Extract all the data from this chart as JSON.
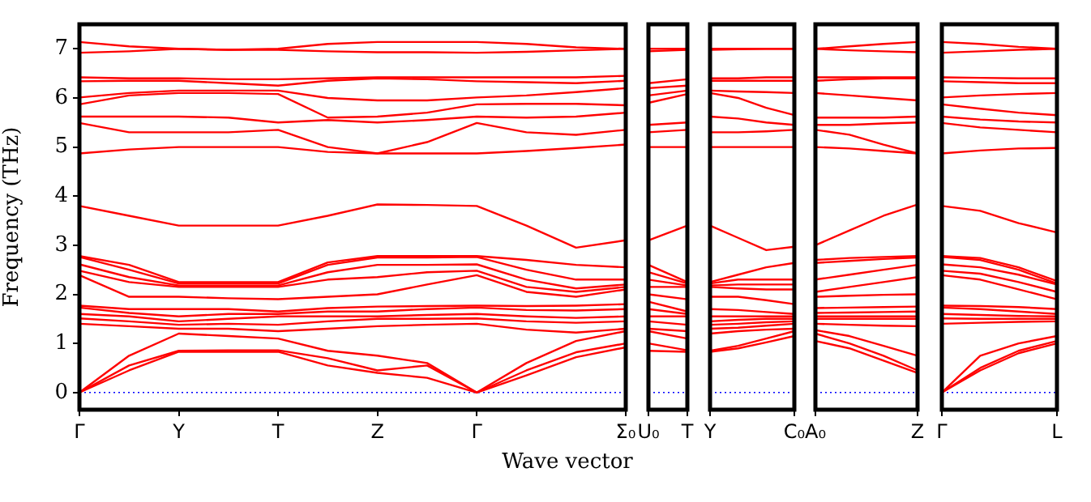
{
  "chart_data": [
    {
      "type": "line",
      "ylabel": "Frequency (THz)",
      "xlabel": "Wave vector",
      "categories": [
        "Γ",
        null,
        "Y",
        null,
        "T",
        null,
        "Z",
        null,
        "Γ",
        null,
        null,
        "Σ₀"
      ],
      "ylim": [
        -0.35,
        7.5
      ],
      "yticks": [
        0,
        1,
        2,
        3,
        4,
        5,
        6,
        7
      ],
      "ref_lines": [
        {
          "axis": "y",
          "value": 0,
          "color": "#0000ff",
          "line_style": "dotted"
        }
      ],
      "series": [
        {
          "color": "#ff0000",
          "values": [
            0,
            0.45,
            0.83,
            0.83,
            0.83,
            0.55,
            0.4,
            0.3,
            0,
            0.35,
            0.72,
            0.92
          ]
        },
        {
          "color": "#ff0000",
          "values": [
            0,
            0.55,
            0.85,
            0.86,
            0.86,
            0.7,
            0.45,
            0.55,
            0,
            0.45,
            0.82,
            1.0
          ]
        },
        {
          "color": "#ff0000",
          "values": [
            0,
            0.75,
            1.2,
            1.15,
            1.1,
            0.85,
            0.75,
            0.6,
            0,
            0.6,
            1.05,
            1.25
          ]
        },
        {
          "color": "#ff0000",
          "values": [
            1.4,
            1.35,
            1.3,
            1.3,
            1.25,
            1.3,
            1.35,
            1.38,
            1.4,
            1.28,
            1.22,
            1.3
          ]
        },
        {
          "color": "#ff0000",
          "values": [
            1.51,
            1.45,
            1.38,
            1.4,
            1.38,
            1.45,
            1.5,
            1.5,
            1.51,
            1.45,
            1.42,
            1.45
          ]
        },
        {
          "color": "#ff0000",
          "values": [
            1.6,
            1.55,
            1.45,
            1.5,
            1.55,
            1.55,
            1.55,
            1.58,
            1.6,
            1.55,
            1.52,
            1.55
          ]
        },
        {
          "color": "#ff0000",
          "values": [
            1.73,
            1.62,
            1.55,
            1.6,
            1.6,
            1.65,
            1.65,
            1.7,
            1.73,
            1.68,
            1.67,
            1.7
          ]
        },
        {
          "color": "#ff0000",
          "values": [
            1.77,
            1.7,
            1.7,
            1.7,
            1.65,
            1.72,
            1.75,
            1.76,
            1.77,
            1.76,
            1.77,
            1.8
          ]
        },
        {
          "color": "#ff0000",
          "values": [
            2.39,
            1.95,
            1.95,
            1.92,
            1.9,
            1.95,
            2.0,
            2.2,
            2.39,
            2.05,
            1.95,
            2.1
          ]
        },
        {
          "color": "#ff0000",
          "values": [
            2.48,
            2.25,
            2.15,
            2.15,
            2.15,
            2.3,
            2.35,
            2.45,
            2.48,
            2.15,
            2.05,
            2.15
          ]
        },
        {
          "color": "#ff0000",
          "values": [
            2.61,
            2.35,
            2.18,
            2.18,
            2.18,
            2.45,
            2.6,
            2.6,
            2.61,
            2.3,
            2.12,
            2.2
          ]
        },
        {
          "color": "#ff0000",
          "values": [
            2.76,
            2.5,
            2.22,
            2.22,
            2.22,
            2.6,
            2.75,
            2.75,
            2.76,
            2.5,
            2.3,
            2.3
          ]
        },
        {
          "color": "#ff0000",
          "values": [
            2.78,
            2.6,
            2.25,
            2.25,
            2.25,
            2.65,
            2.78,
            2.78,
            2.78,
            2.7,
            2.6,
            2.55
          ]
        },
        {
          "color": "#ff0000",
          "values": [
            3.8,
            3.6,
            3.4,
            3.4,
            3.4,
            3.6,
            3.83,
            3.82,
            3.8,
            3.4,
            2.95,
            3.1
          ]
        },
        {
          "color": "#ff0000",
          "values": [
            4.87,
            4.95,
            5.0,
            5.0,
            5.0,
            4.9,
            4.87,
            4.87,
            4.87,
            4.92,
            4.98,
            5.05
          ]
        },
        {
          "color": "#ff0000",
          "values": [
            5.49,
            5.3,
            5.3,
            5.3,
            5.35,
            5.0,
            4.87,
            5.1,
            5.49,
            5.3,
            5.25,
            5.35
          ]
        },
        {
          "color": "#ff0000",
          "values": [
            5.62,
            5.62,
            5.62,
            5.6,
            5.5,
            5.55,
            5.5,
            5.55,
            5.62,
            5.6,
            5.62,
            5.7
          ]
        },
        {
          "color": "#ff0000",
          "values": [
            5.87,
            6.05,
            6.1,
            6.1,
            6.08,
            5.6,
            5.62,
            5.7,
            5.87,
            5.88,
            5.88,
            5.85
          ]
        },
        {
          "color": "#ff0000",
          "values": [
            6.01,
            6.1,
            6.15,
            6.15,
            6.15,
            6.0,
            5.95,
            5.95,
            6.01,
            6.05,
            6.12,
            6.2
          ]
        },
        {
          "color": "#ff0000",
          "values": [
            6.34,
            6.35,
            6.35,
            6.3,
            6.25,
            6.35,
            6.4,
            6.38,
            6.34,
            6.32,
            6.3,
            6.35
          ]
        },
        {
          "color": "#ff0000",
          "values": [
            6.42,
            6.4,
            6.4,
            6.38,
            6.38,
            6.4,
            6.42,
            6.42,
            6.42,
            6.42,
            6.42,
            6.45
          ]
        },
        {
          "color": "#ff0000",
          "values": [
            6.92,
            6.95,
            7.0,
            6.98,
            6.98,
            6.95,
            6.93,
            6.93,
            6.92,
            6.94,
            6.97,
            7.0
          ]
        },
        {
          "color": "#ff0000",
          "values": [
            7.14,
            7.05,
            7.0,
            6.98,
            7.0,
            7.1,
            7.14,
            7.14,
            7.14,
            7.1,
            7.03,
            7.0
          ]
        }
      ]
    },
    {
      "type": "line",
      "tick_labels": "x",
      "categories": [
        "U₀",
        "T"
      ],
      "ylim": [
        -0.35,
        7.5
      ],
      "yticks": [
        0,
        1,
        2,
        3,
        4,
        5,
        6,
        7
      ],
      "ref_lines": [
        {
          "axis": "y",
          "value": 0,
          "color": "#0000ff",
          "line_style": "dotted"
        }
      ],
      "series": [
        {
          "color": "#ff0000",
          "values": [
            0.85,
            0.83
          ]
        },
        {
          "color": "#ff0000",
          "values": [
            1.0,
            0.86
          ]
        },
        {
          "color": "#ff0000",
          "values": [
            1.25,
            1.1
          ]
        },
        {
          "color": "#ff0000",
          "values": [
            1.3,
            1.25
          ]
        },
        {
          "color": "#ff0000",
          "values": [
            1.45,
            1.38
          ]
        },
        {
          "color": "#ff0000",
          "values": [
            1.55,
            1.55
          ]
        },
        {
          "color": "#ff0000",
          "values": [
            1.7,
            1.6
          ]
        },
        {
          "color": "#ff0000",
          "values": [
            1.85,
            1.65
          ]
        },
        {
          "color": "#ff0000",
          "values": [
            2.0,
            1.9
          ]
        },
        {
          "color": "#ff0000",
          "values": [
            2.15,
            2.15
          ]
        },
        {
          "color": "#ff0000",
          "values": [
            2.3,
            2.18
          ]
        },
        {
          "color": "#ff0000",
          "values": [
            2.45,
            2.22
          ]
        },
        {
          "color": "#ff0000",
          "values": [
            2.6,
            2.25
          ]
        },
        {
          "color": "#ff0000",
          "values": [
            3.1,
            3.4
          ]
        },
        {
          "color": "#ff0000",
          "values": [
            5.0,
            5.0
          ]
        },
        {
          "color": "#ff0000",
          "values": [
            5.3,
            5.35
          ]
        },
        {
          "color": "#ff0000",
          "values": [
            5.45,
            5.5
          ]
        },
        {
          "color": "#ff0000",
          "values": [
            5.9,
            6.08
          ]
        },
        {
          "color": "#ff0000",
          "values": [
            6.05,
            6.15
          ]
        },
        {
          "color": "#ff0000",
          "values": [
            6.2,
            6.25
          ]
        },
        {
          "color": "#ff0000",
          "values": [
            6.3,
            6.38
          ]
        },
        {
          "color": "#ff0000",
          "values": [
            6.95,
            6.98
          ]
        },
        {
          "color": "#ff0000",
          "values": [
            7.0,
            7.0
          ]
        }
      ]
    },
    {
      "type": "line",
      "tick_labels": "x",
      "categories": [
        "Y",
        null,
        null,
        "C₀"
      ],
      "ylim": [
        -0.35,
        7.5
      ],
      "yticks": [
        0,
        1,
        2,
        3,
        4,
        5,
        6,
        7
      ],
      "ref_lines": [
        {
          "axis": "y",
          "value": 0,
          "color": "#0000ff",
          "line_style": "dotted"
        }
      ],
      "series": [
        {
          "color": "#ff0000",
          "values": [
            0.83,
            0.9,
            1.02,
            1.15
          ]
        },
        {
          "color": "#ff0000",
          "values": [
            0.85,
            0.95,
            1.1,
            1.25
          ]
        },
        {
          "color": "#ff0000",
          "values": [
            1.2,
            1.25,
            1.28,
            1.3
          ]
        },
        {
          "color": "#ff0000",
          "values": [
            1.3,
            1.32,
            1.36,
            1.4
          ]
        },
        {
          "color": "#ff0000",
          "values": [
            1.38,
            1.4,
            1.43,
            1.45
          ]
        },
        {
          "color": "#ff0000",
          "values": [
            1.45,
            1.48,
            1.5,
            1.5
          ]
        },
        {
          "color": "#ff0000",
          "values": [
            1.55,
            1.55,
            1.55,
            1.55
          ]
        },
        {
          "color": "#ff0000",
          "values": [
            1.7,
            1.68,
            1.64,
            1.6
          ]
        },
        {
          "color": "#ff0000",
          "values": [
            1.95,
            1.95,
            1.88,
            1.8
          ]
        },
        {
          "color": "#ff0000",
          "values": [
            2.15,
            2.12,
            2.1,
            2.1
          ]
        },
        {
          "color": "#ff0000",
          "values": [
            2.18,
            2.2,
            2.2,
            2.2
          ]
        },
        {
          "color": "#ff0000",
          "values": [
            2.22,
            2.3,
            2.3,
            2.3
          ]
        },
        {
          "color": "#ff0000",
          "values": [
            2.25,
            2.4,
            2.55,
            2.64
          ]
        },
        {
          "color": "#ff0000",
          "values": [
            3.4,
            3.15,
            2.9,
            2.97
          ]
        },
        {
          "color": "#ff0000",
          "values": [
            5.0,
            5.0,
            5.0,
            5.0
          ]
        },
        {
          "color": "#ff0000",
          "values": [
            5.3,
            5.3,
            5.32,
            5.35
          ]
        },
        {
          "color": "#ff0000",
          "values": [
            5.62,
            5.58,
            5.5,
            5.45
          ]
        },
        {
          "color": "#ff0000",
          "values": [
            6.1,
            6.0,
            5.8,
            5.65
          ]
        },
        {
          "color": "#ff0000",
          "values": [
            6.15,
            6.13,
            6.12,
            6.1
          ]
        },
        {
          "color": "#ff0000",
          "values": [
            6.35,
            6.35,
            6.35,
            6.35
          ]
        },
        {
          "color": "#ff0000",
          "values": [
            6.4,
            6.4,
            6.42,
            6.42
          ]
        },
        {
          "color": "#ff0000",
          "values": [
            6.98,
            6.99,
            7.0,
            7.0
          ]
        },
        {
          "color": "#ff0000",
          "values": [
            7.0,
            7.0,
            7.0,
            7.0
          ]
        }
      ]
    },
    {
      "type": "line",
      "tick_labels": "x",
      "categories": [
        "A₀",
        null,
        null,
        "Z"
      ],
      "ylim": [
        -0.35,
        7.5
      ],
      "yticks": [
        0,
        1,
        2,
        3,
        4,
        5,
        6,
        7
      ],
      "ref_lines": [
        {
          "axis": "y",
          "value": 0,
          "color": "#0000ff",
          "line_style": "dotted"
        }
      ],
      "series": [
        {
          "color": "#ff0000",
          "values": [
            1.05,
            0.9,
            0.65,
            0.4
          ]
        },
        {
          "color": "#ff0000",
          "values": [
            1.2,
            1.0,
            0.75,
            0.45
          ]
        },
        {
          "color": "#ff0000",
          "values": [
            1.27,
            1.15,
            0.95,
            0.75
          ]
        },
        {
          "color": "#ff0000",
          "values": [
            1.4,
            1.38,
            1.36,
            1.35
          ]
        },
        {
          "color": "#ff0000",
          "values": [
            1.5,
            1.5,
            1.5,
            1.5
          ]
        },
        {
          "color": "#ff0000",
          "values": [
            1.55,
            1.55,
            1.55,
            1.55
          ]
        },
        {
          "color": "#ff0000",
          "values": [
            1.62,
            1.63,
            1.64,
            1.65
          ]
        },
        {
          "color": "#ff0000",
          "values": [
            1.72,
            1.73,
            1.74,
            1.75
          ]
        },
        {
          "color": "#ff0000",
          "values": [
            1.95,
            1.97,
            1.99,
            2.0
          ]
        },
        {
          "color": "#ff0000",
          "values": [
            2.05,
            2.15,
            2.25,
            2.35
          ]
        },
        {
          "color": "#ff0000",
          "values": [
            2.3,
            2.4,
            2.5,
            2.6
          ]
        },
        {
          "color": "#ff0000",
          "values": [
            2.64,
            2.68,
            2.72,
            2.75
          ]
        },
        {
          "color": "#ff0000",
          "values": [
            2.7,
            2.74,
            2.76,
            2.78
          ]
        },
        {
          "color": "#ff0000",
          "values": [
            3.0,
            3.3,
            3.6,
            3.83
          ]
        },
        {
          "color": "#ff0000",
          "values": [
            5.0,
            4.97,
            4.92,
            4.87
          ]
        },
        {
          "color": "#ff0000",
          "values": [
            5.35,
            5.25,
            5.05,
            4.87
          ]
        },
        {
          "color": "#ff0000",
          "values": [
            5.45,
            5.45,
            5.48,
            5.5
          ]
        },
        {
          "color": "#ff0000",
          "values": [
            5.6,
            5.6,
            5.6,
            5.62
          ]
        },
        {
          "color": "#ff0000",
          "values": [
            6.1,
            6.05,
            6.0,
            5.95
          ]
        },
        {
          "color": "#ff0000",
          "values": [
            6.35,
            6.38,
            6.4,
            6.4
          ]
        },
        {
          "color": "#ff0000",
          "values": [
            6.42,
            6.42,
            6.42,
            6.42
          ]
        },
        {
          "color": "#ff0000",
          "values": [
            7.0,
            6.97,
            6.95,
            6.93
          ]
        },
        {
          "color": "#ff0000",
          "values": [
            7.0,
            7.05,
            7.1,
            7.14
          ]
        }
      ]
    },
    {
      "type": "line",
      "tick_labels": "x",
      "categories": [
        "Γ",
        null,
        null,
        "L"
      ],
      "ylim": [
        -0.35,
        7.5
      ],
      "yticks": [
        0,
        1,
        2,
        3,
        4,
        5,
        6,
        7
      ],
      "ref_lines": [
        {
          "axis": "y",
          "value": 0,
          "color": "#0000ff",
          "line_style": "dotted"
        }
      ],
      "series": [
        {
          "color": "#ff0000",
          "values": [
            0,
            0.45,
            0.8,
            1.0
          ]
        },
        {
          "color": "#ff0000",
          "values": [
            0,
            0.5,
            0.85,
            1.05
          ]
        },
        {
          "color": "#ff0000",
          "values": [
            0,
            0.75,
            1.0,
            1.15
          ]
        },
        {
          "color": "#ff0000",
          "values": [
            1.4,
            1.42,
            1.44,
            1.45
          ]
        },
        {
          "color": "#ff0000",
          "values": [
            1.51,
            1.5,
            1.5,
            1.5
          ]
        },
        {
          "color": "#ff0000",
          "values": [
            1.6,
            1.58,
            1.56,
            1.55
          ]
        },
        {
          "color": "#ff0000",
          "values": [
            1.73,
            1.7,
            1.65,
            1.6
          ]
        },
        {
          "color": "#ff0000",
          "values": [
            1.77,
            1.76,
            1.74,
            1.7
          ]
        },
        {
          "color": "#ff0000",
          "values": [
            2.39,
            2.3,
            2.1,
            1.9
          ]
        },
        {
          "color": "#ff0000",
          "values": [
            2.48,
            2.42,
            2.25,
            2.05
          ]
        },
        {
          "color": "#ff0000",
          "values": [
            2.61,
            2.55,
            2.4,
            2.2
          ]
        },
        {
          "color": "#ff0000",
          "values": [
            2.76,
            2.7,
            2.5,
            2.22
          ]
        },
        {
          "color": "#ff0000",
          "values": [
            2.78,
            2.74,
            2.55,
            2.27
          ]
        },
        {
          "color": "#ff0000",
          "values": [
            3.8,
            3.7,
            3.45,
            3.26
          ]
        },
        {
          "color": "#ff0000",
          "values": [
            4.87,
            4.93,
            4.97,
            4.98
          ]
        },
        {
          "color": "#ff0000",
          "values": [
            5.49,
            5.4,
            5.35,
            5.3
          ]
        },
        {
          "color": "#ff0000",
          "values": [
            5.62,
            5.56,
            5.52,
            5.5
          ]
        },
        {
          "color": "#ff0000",
          "values": [
            5.87,
            5.78,
            5.7,
            5.65
          ]
        },
        {
          "color": "#ff0000",
          "values": [
            6.01,
            6.05,
            6.08,
            6.1
          ]
        },
        {
          "color": "#ff0000",
          "values": [
            6.34,
            6.32,
            6.3,
            6.3
          ]
        },
        {
          "color": "#ff0000",
          "values": [
            6.42,
            6.41,
            6.4,
            6.4
          ]
        },
        {
          "color": "#ff0000",
          "values": [
            6.92,
            6.95,
            6.98,
            7.0
          ]
        },
        {
          "color": "#ff0000",
          "values": [
            7.14,
            7.1,
            7.04,
            7.0
          ]
        }
      ]
    }
  ]
}
